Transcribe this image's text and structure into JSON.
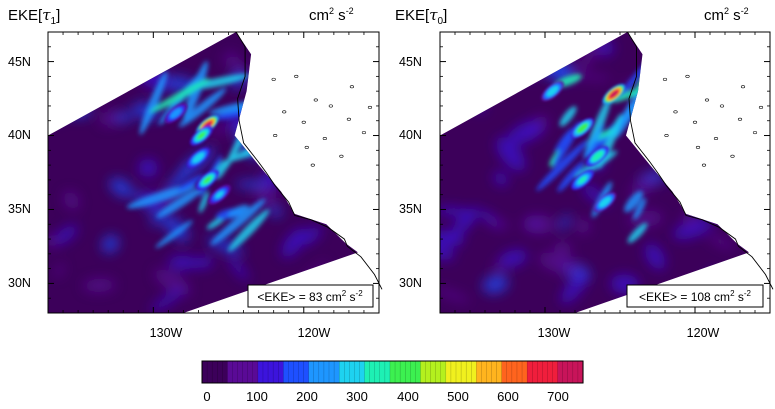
{
  "chart_data": [
    {
      "type": "heatmap",
      "title_prefix": "EKE[",
      "title_symbol": "τ",
      "title_subscript": "1",
      "title_suffix": "]",
      "units_prefix": "cm",
      "units_exp1": "2",
      "units_mid": " s",
      "units_exp2": "-2",
      "x_ticks": [
        "130W",
        "120W"
      ],
      "y_ticks": [
        "45N",
        "40N",
        "35N",
        "30N"
      ],
      "x_tick_values": [
        -130,
        -120
      ],
      "y_tick_values": [
        45,
        40,
        35,
        30
      ],
      "xlim": [
        -137,
        -115
      ],
      "ylim": [
        28,
        47
      ],
      "mean_label_prefix": "<EKE> = 83 cm",
      "mean_label_exp1": "2",
      "mean_label_mid": " s",
      "mean_label_exp2": "-2",
      "mean_eke": 83,
      "hotspots": [
        {
          "lon": -126.4,
          "lat": 40.7,
          "value": 720
        },
        {
          "lon": -126.8,
          "lat": 40.0,
          "value": 380
        },
        {
          "lon": -127.0,
          "lat": 38.5,
          "value": 320
        },
        {
          "lon": -126.4,
          "lat": 37.0,
          "value": 380
        },
        {
          "lon": -125.6,
          "lat": 36.0,
          "value": 280
        },
        {
          "lon": -128.5,
          "lat": 41.5,
          "value": 240
        }
      ]
    },
    {
      "type": "heatmap",
      "title_prefix": "EKE[",
      "title_symbol": "τ",
      "title_subscript": "0",
      "title_suffix": "]",
      "units_prefix": "cm",
      "units_exp1": "2",
      "units_mid": " s",
      "units_exp2": "-2",
      "x_ticks": [
        "130W",
        "120W"
      ],
      "y_ticks": [
        "45N",
        "40N",
        "35N",
        "30N"
      ],
      "x_tick_values": [
        -130,
        -120
      ],
      "y_tick_values": [
        45,
        40,
        35,
        30
      ],
      "xlim": [
        -137,
        -115
      ],
      "ylim": [
        28,
        47
      ],
      "mean_label_prefix": "<EKE> = 108 cm",
      "mean_label_exp1": "2",
      "mean_label_mid": " s",
      "mean_label_exp2": "-2",
      "mean_eke": 108,
      "hotspots": [
        {
          "lon": -125.4,
          "lat": 42.8,
          "value": 740
        },
        {
          "lon": -127.5,
          "lat": 40.5,
          "value": 420
        },
        {
          "lon": -126.5,
          "lat": 38.6,
          "value": 360
        },
        {
          "lon": -127.5,
          "lat": 37.0,
          "value": 340
        },
        {
          "lon": -126.0,
          "lat": 35.5,
          "value": 300
        },
        {
          "lon": -129.5,
          "lat": 43.0,
          "value": 300
        }
      ]
    }
  ],
  "colorbar": {
    "min": 0,
    "max": 750,
    "tick_labels": [
      "0",
      "100",
      "200",
      "300",
      "400",
      "500",
      "600",
      "700"
    ],
    "tick_values": [
      0,
      100,
      200,
      300,
      400,
      500,
      600,
      700
    ],
    "colors": [
      "#3c005a",
      "#5a0a96",
      "#3c14dc",
      "#1e50ff",
      "#1e96ff",
      "#1ed2f0",
      "#1ef0b4",
      "#3cf050",
      "#b4f01e",
      "#f0f01e",
      "#ffb41e",
      "#ff641e",
      "#f01e3c",
      "#c8145a"
    ]
  }
}
